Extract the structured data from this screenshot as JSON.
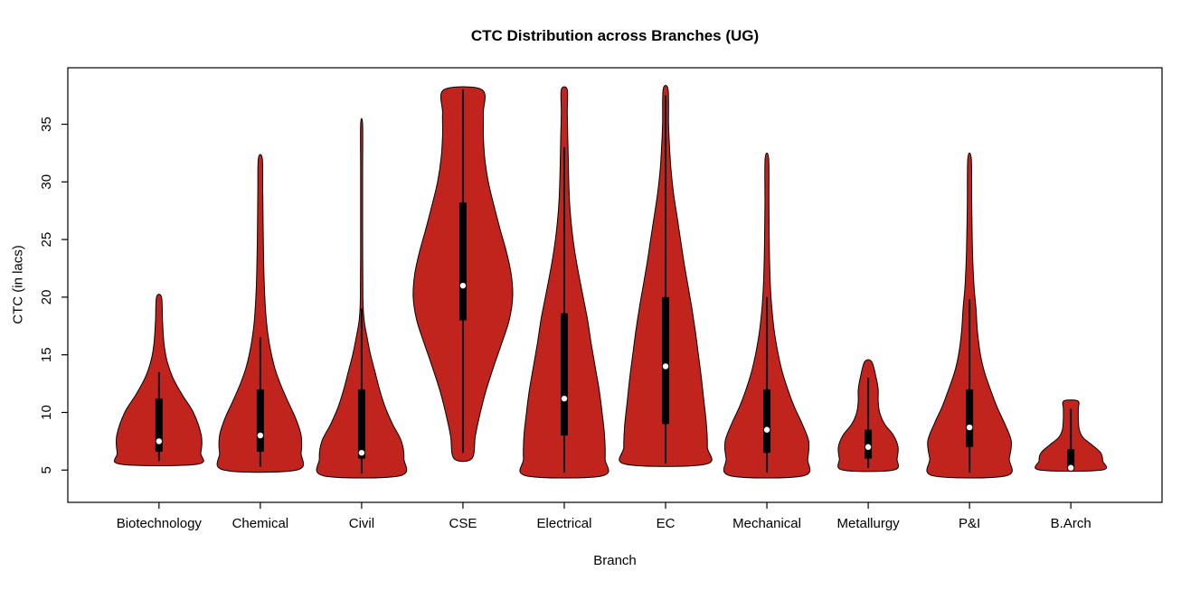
{
  "chart_data": {
    "type": "violin",
    "title": "CTC Distribution across Branches (UG)",
    "xlabel": "Branch",
    "ylabel": "CTC (in lacs)",
    "y_ticks": [
      5,
      10,
      15,
      20,
      25,
      30,
      35
    ],
    "ylim": [
      2.2,
      39.9
    ],
    "legend": "none",
    "grid": false,
    "violin_fill": "#C0241D",
    "violin_stroke": "#000000",
    "categories": [
      "Biotechnology",
      "Chemical",
      "Civil",
      "CSE",
      "Electrical",
      "EC",
      "Mechanical",
      "Metallurgy",
      "P&I",
      "B.Arch"
    ],
    "violins": [
      {
        "branch": "Biotechnology",
        "min": 5.5,
        "max": 20,
        "q1": 6.6,
        "median": 7.5,
        "q3": 11.2,
        "whisker_lo": 5.8,
        "whisker_hi": 13.5,
        "profile": [
          [
            5.5,
            0.76
          ],
          [
            6.5,
            0.84
          ],
          [
            8,
            0.85
          ],
          [
            10,
            0.69
          ],
          [
            11.5,
            0.47
          ],
          [
            13,
            0.28
          ],
          [
            14.5,
            0.16
          ],
          [
            16,
            0.1
          ],
          [
            18,
            0.07
          ],
          [
            20,
            0.05
          ]
        ]
      },
      {
        "branch": "Chemical",
        "min": 5,
        "max": 32,
        "q1": 6.6,
        "median": 8,
        "q3": 12,
        "whisker_lo": 5.3,
        "whisker_hi": 16.5,
        "profile": [
          [
            5,
            0.73
          ],
          [
            6.5,
            0.82
          ],
          [
            8,
            0.82
          ],
          [
            9.5,
            0.71
          ],
          [
            11,
            0.55
          ],
          [
            12.5,
            0.4
          ],
          [
            14,
            0.28
          ],
          [
            16,
            0.18
          ],
          [
            18,
            0.12
          ],
          [
            21,
            0.08
          ],
          [
            25,
            0.06
          ],
          [
            29,
            0.05
          ],
          [
            32,
            0.04
          ]
        ]
      },
      {
        "branch": "Civil",
        "min": 4.5,
        "max": 35,
        "q1": 6,
        "median": 6.5,
        "q3": 12,
        "whisker_lo": 4.7,
        "whisker_hi": 19,
        "profile": [
          [
            4.5,
            0.76
          ],
          [
            6,
            0.85
          ],
          [
            7.5,
            0.8
          ],
          [
            9,
            0.62
          ],
          [
            10.5,
            0.47
          ],
          [
            12,
            0.36
          ],
          [
            13.5,
            0.27
          ],
          [
            15,
            0.18
          ],
          [
            16.5,
            0.11
          ],
          [
            18,
            0.05
          ],
          [
            20,
            0.025
          ],
          [
            26,
            0.02
          ],
          [
            31,
            0.02
          ],
          [
            35,
            0.02
          ]
        ]
      },
      {
        "branch": "CSE",
        "min": 6,
        "max": 38,
        "q1": 18,
        "median": 21,
        "q3": 28.2,
        "whisker_lo": 6.5,
        "whisker_hi": 38,
        "profile": [
          [
            6,
            0.18
          ],
          [
            8,
            0.25
          ],
          [
            10,
            0.35
          ],
          [
            12,
            0.47
          ],
          [
            14,
            0.62
          ],
          [
            16,
            0.78
          ],
          [
            18,
            0.93
          ],
          [
            20,
            1.0
          ],
          [
            22,
            0.97
          ],
          [
            24,
            0.87
          ],
          [
            26,
            0.74
          ],
          [
            28,
            0.62
          ],
          [
            30,
            0.51
          ],
          [
            32,
            0.44
          ],
          [
            34,
            0.41
          ],
          [
            36,
            0.41
          ],
          [
            38,
            0.38
          ]
        ]
      },
      {
        "branch": "Electrical",
        "min": 4.5,
        "max": 38,
        "q1": 8,
        "median": 11.2,
        "q3": 18.6,
        "whisker_lo": 4.8,
        "whisker_hi": 33,
        "profile": [
          [
            4.5,
            0.76
          ],
          [
            6,
            0.82
          ],
          [
            8,
            0.81
          ],
          [
            10,
            0.76
          ],
          [
            12,
            0.7
          ],
          [
            14,
            0.62
          ],
          [
            16,
            0.54
          ],
          [
            18,
            0.47
          ],
          [
            20,
            0.38
          ],
          [
            22,
            0.29
          ],
          [
            24,
            0.21
          ],
          [
            26,
            0.15
          ],
          [
            28,
            0.11
          ],
          [
            30,
            0.09
          ],
          [
            32,
            0.08
          ],
          [
            34,
            0.07
          ],
          [
            36,
            0.06
          ],
          [
            38,
            0.06
          ]
        ]
      },
      {
        "branch": "EC",
        "min": 5.5,
        "max": 38,
        "q1": 9,
        "median": 14,
        "q3": 20,
        "whisker_lo": 5.6,
        "whisker_hi": 37.5,
        "profile": [
          [
            5.5,
            0.8
          ],
          [
            7,
            0.84
          ],
          [
            9,
            0.82
          ],
          [
            11,
            0.77
          ],
          [
            13,
            0.72
          ],
          [
            15,
            0.66
          ],
          [
            17,
            0.6
          ],
          [
            19,
            0.53
          ],
          [
            21,
            0.45
          ],
          [
            23,
            0.37
          ],
          [
            25,
            0.3
          ],
          [
            27,
            0.23
          ],
          [
            29,
            0.16
          ],
          [
            31,
            0.11
          ],
          [
            33,
            0.08
          ],
          [
            35,
            0.06
          ],
          [
            38,
            0.05
          ]
        ]
      },
      {
        "branch": "Mechanical",
        "min": 4.5,
        "max": 32,
        "q1": 6.5,
        "median": 8.5,
        "q3": 12,
        "whisker_lo": 4.8,
        "whisker_hi": 20,
        "profile": [
          [
            4.5,
            0.73
          ],
          [
            6,
            0.82
          ],
          [
            7.5,
            0.84
          ],
          [
            9,
            0.71
          ],
          [
            10.5,
            0.55
          ],
          [
            12,
            0.42
          ],
          [
            13.5,
            0.31
          ],
          [
            15,
            0.23
          ],
          [
            17,
            0.15
          ],
          [
            19,
            0.1
          ],
          [
            21,
            0.07
          ],
          [
            24,
            0.05
          ],
          [
            28,
            0.04
          ],
          [
            32,
            0.035
          ]
        ]
      },
      {
        "branch": "Metallurgy",
        "min": 5,
        "max": 14.4,
        "q1": 6,
        "median": 7,
        "q3": 8.5,
        "whisker_lo": 5.2,
        "whisker_hi": 13,
        "profile": [
          [
            5,
            0.51
          ],
          [
            6,
            0.58
          ],
          [
            7,
            0.6
          ],
          [
            8,
            0.51
          ],
          [
            9,
            0.33
          ],
          [
            10,
            0.23
          ],
          [
            11,
            0.2
          ],
          [
            12,
            0.2
          ],
          [
            13,
            0.16
          ],
          [
            14.4,
            0.07
          ]
        ]
      },
      {
        "branch": "P&I",
        "min": 4.5,
        "max": 32,
        "q1": 7,
        "median": 8.7,
        "q3": 12,
        "whisker_lo": 4.8,
        "whisker_hi": 19.8,
        "profile": [
          [
            4.5,
            0.73
          ],
          [
            6,
            0.8
          ],
          [
            7.5,
            0.84
          ],
          [
            9,
            0.71
          ],
          [
            10.5,
            0.55
          ],
          [
            12,
            0.42
          ],
          [
            13.5,
            0.3
          ],
          [
            15,
            0.22
          ],
          [
            17,
            0.16
          ],
          [
            19,
            0.13
          ],
          [
            21,
            0.09
          ],
          [
            24,
            0.06
          ],
          [
            28,
            0.045
          ],
          [
            32,
            0.035
          ]
        ]
      },
      {
        "branch": "B.Arch",
        "min": 5,
        "max": 11,
        "q1": 5,
        "median": 5.2,
        "q3": 6.8,
        "whisker_lo": 5,
        "whisker_hi": 10.3,
        "profile": [
          [
            5,
            0.62
          ],
          [
            5.8,
            0.64
          ],
          [
            6.5,
            0.6
          ],
          [
            7.2,
            0.42
          ],
          [
            7.8,
            0.25
          ],
          [
            8.5,
            0.17
          ],
          [
            9.5,
            0.15
          ],
          [
            10.3,
            0.15
          ],
          [
            11,
            0.14
          ]
        ]
      }
    ]
  }
}
